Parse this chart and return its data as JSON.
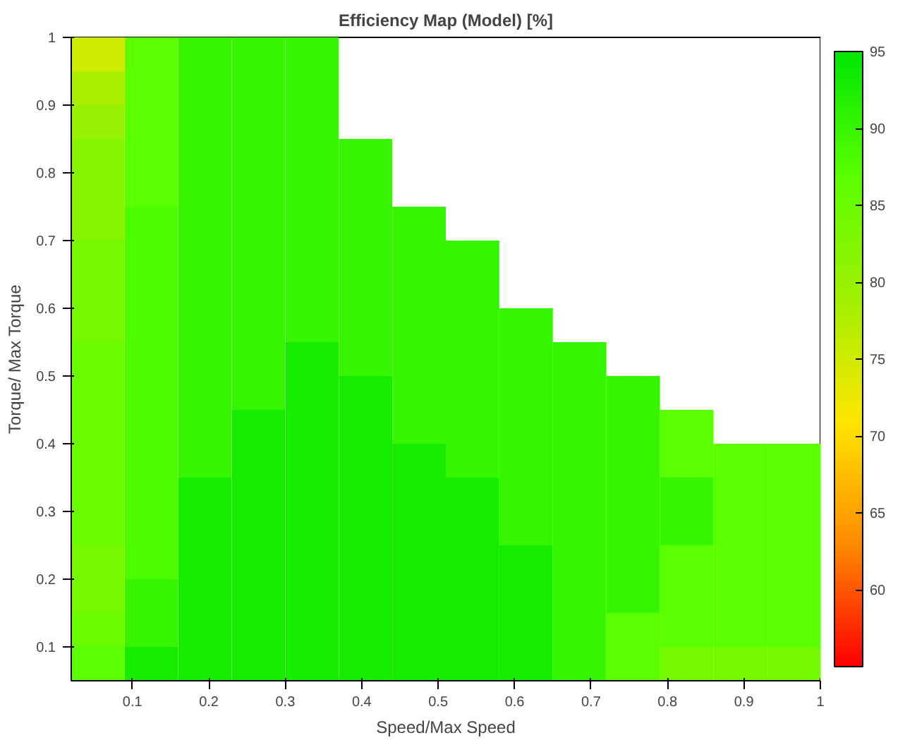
{
  "chart_data": {
    "type": "heatmap",
    "title": "Efficiency Map (Model) [%]",
    "xlabel": "Speed/Max Speed",
    "ylabel": "Torque/ Max Torque",
    "xlim": [
      0.02,
      1
    ],
    "ylim": [
      0.05,
      1
    ],
    "xticks": [
      0.1,
      0.2,
      0.3,
      0.4,
      0.5,
      0.6,
      0.7,
      0.8,
      0.9,
      1
    ],
    "yticks": [
      0.1,
      0.2,
      0.3,
      0.4,
      0.5,
      0.6,
      0.7,
      0.8,
      0.9,
      1
    ],
    "clim": [
      55,
      95
    ],
    "cticks": [
      60,
      65,
      70,
      75,
      80,
      85,
      90,
      95
    ],
    "cells": [
      [
        75,
        87,
        90,
        90,
        90,
        null,
        null,
        null,
        null,
        null,
        null,
        null,
        null,
        null
      ],
      [
        78,
        87,
        90,
        90,
        90,
        null,
        null,
        null,
        null,
        null,
        null,
        null,
        null,
        null
      ],
      [
        80,
        87,
        90,
        90,
        90,
        null,
        null,
        null,
        null,
        null,
        null,
        null,
        null,
        null
      ],
      [
        82,
        87,
        90,
        90,
        90,
        90,
        null,
        null,
        null,
        null,
        null,
        null,
        null,
        null
      ],
      [
        82,
        87,
        90,
        90,
        90,
        90,
        null,
        null,
        null,
        null,
        null,
        null,
        null,
        null
      ],
      [
        82,
        88,
        90,
        90,
        90,
        90,
        90,
        null,
        null,
        null,
        null,
        null,
        null,
        null
      ],
      [
        84,
        88,
        90,
        90,
        90,
        90,
        90,
        90,
        null,
        null,
        null,
        null,
        null,
        null
      ],
      [
        84,
        88,
        90,
        90,
        90,
        90,
        90,
        90,
        null,
        null,
        null,
        null,
        null,
        null
      ],
      [
        84,
        88,
        90,
        90,
        90,
        90,
        90,
        90,
        90,
        null,
        null,
        null,
        null,
        null
      ],
      [
        85,
        88,
        90,
        90,
        93,
        90,
        90,
        90,
        90,
        90,
        null,
        null,
        null,
        null
      ],
      [
        85,
        88,
        90,
        90,
        93,
        93,
        90,
        90,
        90,
        90,
        90,
        null,
        null,
        null
      ],
      [
        85,
        88,
        90,
        93,
        93,
        93,
        90,
        90,
        90,
        90,
        90,
        87,
        null,
        null
      ],
      [
        85,
        88,
        90,
        93,
        93,
        93,
        93,
        90,
        90,
        90,
        90,
        87,
        87,
        87
      ],
      [
        85,
        88,
        93,
        93,
        93,
        93,
        93,
        93,
        90,
        90,
        90,
        90,
        87,
        87
      ],
      [
        85,
        88,
        93,
        93,
        93,
        93,
        93,
        93,
        90,
        90,
        90,
        90,
        87,
        87
      ],
      [
        84,
        88,
        93,
        93,
        93,
        93,
        93,
        93,
        93,
        90,
        90,
        87,
        87,
        87
      ],
      [
        84,
        90,
        93,
        93,
        93,
        93,
        93,
        93,
        93,
        90,
        90,
        87,
        87,
        87
      ],
      [
        85,
        90,
        93,
        93,
        93,
        93,
        93,
        93,
        93,
        90,
        87,
        87,
        87,
        87
      ],
      [
        87,
        93,
        93,
        93,
        93,
        93,
        93,
        93,
        93,
        90,
        87,
        84,
        84,
        84
      ]
    ]
  }
}
